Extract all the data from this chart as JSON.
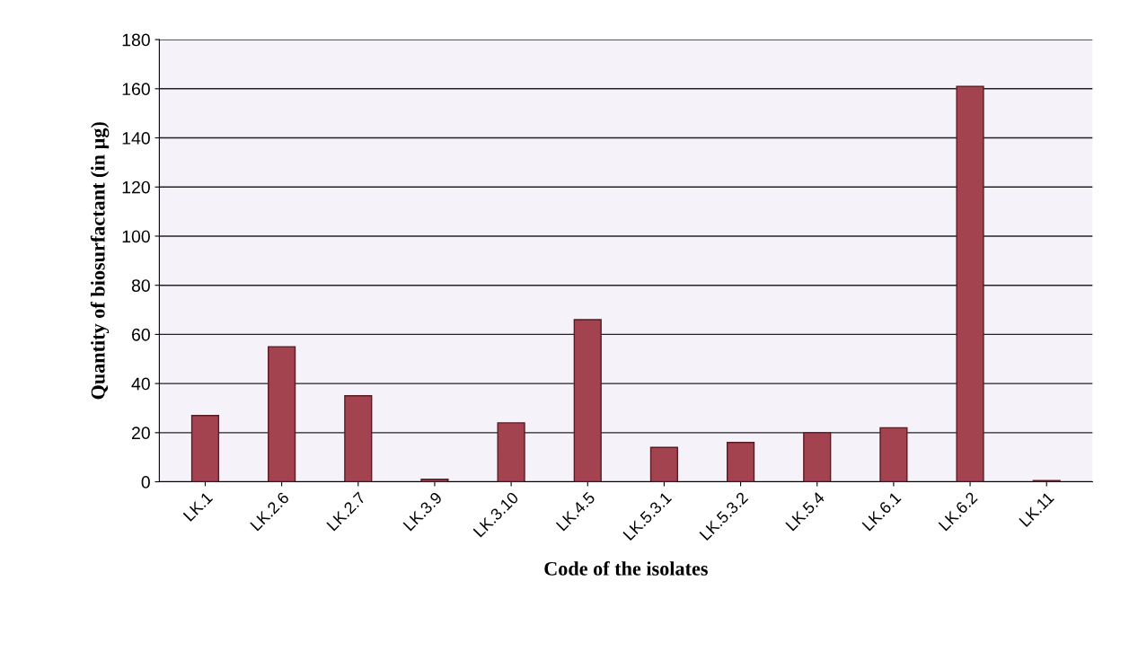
{
  "chart_data": {
    "type": "bar",
    "xlabel": "Code of the isolates",
    "ylabel": "Quantity of biosurfactant (in µg)",
    "categories": [
      "LK.1",
      "LK.2.6",
      "LK.2.7",
      "LK.3.9",
      "LK.3.10",
      "LK.4.5",
      "LK.5.3.1",
      "LK.5.3.2",
      "LK.5.4",
      "LK.6.1",
      "LK.6.2",
      "LK.11"
    ],
    "values": [
      27,
      55,
      35,
      1,
      24,
      66,
      14,
      16,
      20,
      22,
      161,
      0.5
    ],
    "color": "#a3434f",
    "ylim": [
      0,
      180
    ],
    "yticks": [
      0,
      20,
      40,
      60,
      80,
      100,
      120,
      140,
      160,
      180
    ],
    "grid": "y",
    "legend": false
  }
}
